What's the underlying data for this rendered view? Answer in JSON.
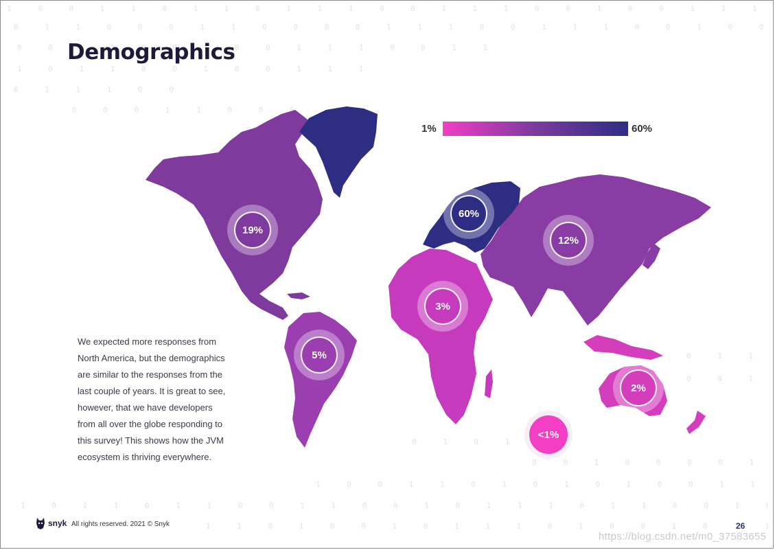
{
  "header": {
    "title": "Demographics"
  },
  "legend": {
    "min_label": "1%",
    "max_label": "60%",
    "gradient_colors": [
      "#f23fc4",
      "#7c3a9e",
      "#2e2d84"
    ]
  },
  "regions": [
    {
      "name": "north-america",
      "value_label": "19%",
      "color": "#7f3a9e"
    },
    {
      "name": "south-america",
      "value_label": "5%",
      "color": "#9b3eb0"
    },
    {
      "name": "europe",
      "value_label": "60%",
      "color": "#2e2d84"
    },
    {
      "name": "africa",
      "value_label": "3%",
      "color": "#c63bbd"
    },
    {
      "name": "asia",
      "value_label": "12%",
      "color": "#8a3ca5"
    },
    {
      "name": "oceania",
      "value_label": "2%",
      "color": "#d43dbc"
    },
    {
      "name": "antarctica",
      "value_label": "<1%",
      "color": "#f23fc4"
    }
  ],
  "body_text": {
    "lines": [
      "We expected more responses from",
      "North America, but the demographics",
      "are similar to the responses from the",
      "last couple of years. It is great to see,",
      "however, that we have developers",
      "from all over the globe responding to",
      "this survey! This shows how the JVM",
      "ecosystem is thriving everywhere."
    ]
  },
  "footer": {
    "brand": "snyk",
    "copyright": "All rights reserved. 2021 © Snyk",
    "page_number": "26"
  },
  "watermark": "https://blog.csdn.net/m0_37583655",
  "background_binary": [
    "1 0 0 1 1 0 1 1 0 1 1 1 0 0 1 1 1 0 0 1 0 0 1 1 1 1 0 0 1 1 0 1 0 0 1 0 0 1 1 0 0",
    "0 1 1 0 0 0 1 1 0 0 0 0 1 1 1 0 0 1 1 1 0 0 1 0 0 0 0 0 0 0 1 1 1 0 0 1 1 0 1 1",
    "0 0 1 1 0 0 1 0 0 1 1 1 0 0 1 1 0 0 0 1 1 1 0 0 1 1 0 0 0",
    "1 0 1 1 0 0 1 0 0 1 1 1 0 0 0 0",
    "                      0 1                          1 1 0 0",
    "        0 0 0 1 1 0 0 0"
  ]
}
